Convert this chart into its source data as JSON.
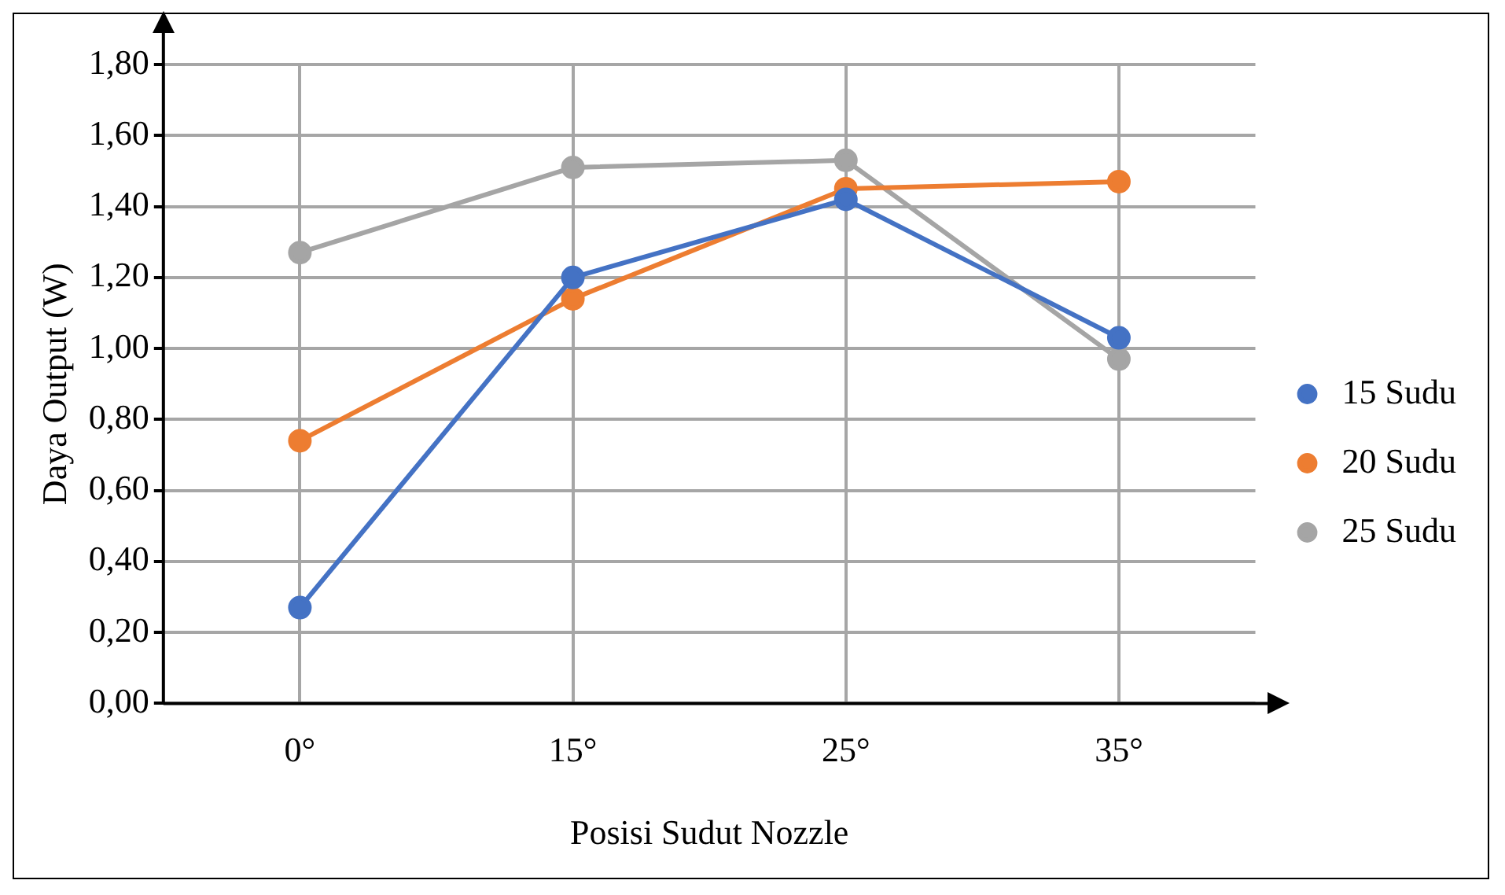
{
  "chart_data": {
    "type": "line",
    "xlabel": "Posisi Sudut Nozzle",
    "ylabel": "Daya Output (W)",
    "categories": [
      "0°",
      "15°",
      "25°",
      "35°"
    ],
    "series": [
      {
        "name": "15 Sudu",
        "color": "#4472c4",
        "values": [
          0.27,
          1.2,
          1.42,
          1.03
        ]
      },
      {
        "name": "20 Sudu",
        "color": "#ed7d31",
        "values": [
          0.74,
          1.14,
          1.45,
          1.47
        ]
      },
      {
        "name": "25 Sudu",
        "color": "#a5a5a5",
        "values": [
          1.27,
          1.51,
          1.53,
          0.97
        ]
      }
    ],
    "ylim": [
      0,
      1.8
    ],
    "yticks": [
      {
        "value": 0,
        "label": "0,00"
      },
      {
        "value": 0.2,
        "label": "0,20"
      },
      {
        "value": 0.4,
        "label": "0,40"
      },
      {
        "value": 0.6,
        "label": "0,60"
      },
      {
        "value": 0.8,
        "label": "0,80"
      },
      {
        "value": 1,
        "label": "1,00"
      },
      {
        "value": 1.2,
        "label": "1,20"
      },
      {
        "value": 1.4,
        "label": "1,40"
      },
      {
        "value": 1.6,
        "label": "1,60"
      },
      {
        "value": 1.8,
        "label": "1,80"
      }
    ],
    "grid": true,
    "legend": "right",
    "marker": "circle",
    "line_style": "solid"
  }
}
